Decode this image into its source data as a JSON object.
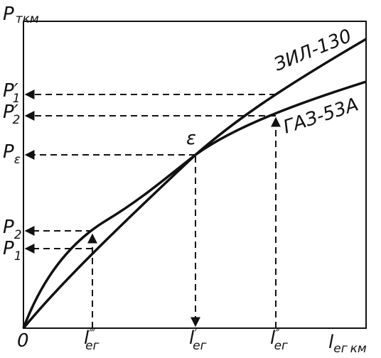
{
  "axes": {
    "y_label": {
      "symbol": "P",
      "unit": "ткм"
    },
    "x_label": {
      "symbol": "l",
      "sub": "ег",
      "unit": "км"
    },
    "origin": "0"
  },
  "y_marks": [
    {
      "symbol": "P",
      "prime": "′",
      "sub": "1"
    },
    {
      "symbol": "P",
      "prime": "′",
      "sub": "2"
    },
    {
      "symbol": "P",
      "sub": "ε"
    },
    {
      "symbol": "P",
      "sub": "2"
    },
    {
      "symbol": "P",
      "sub": "1"
    }
  ],
  "x_marks": [
    {
      "symbol": "l",
      "prime": "‴",
      "sub": "ег"
    },
    {
      "symbol": "l",
      "prime": "′",
      "sub": "ег"
    },
    {
      "symbol": "l",
      "prime": "″",
      "sub": "ег"
    }
  ],
  "curves": [
    {
      "label": "ЗИЛ-130"
    },
    {
      "label": "ГАЗ-53А"
    }
  ],
  "point": "ε"
}
